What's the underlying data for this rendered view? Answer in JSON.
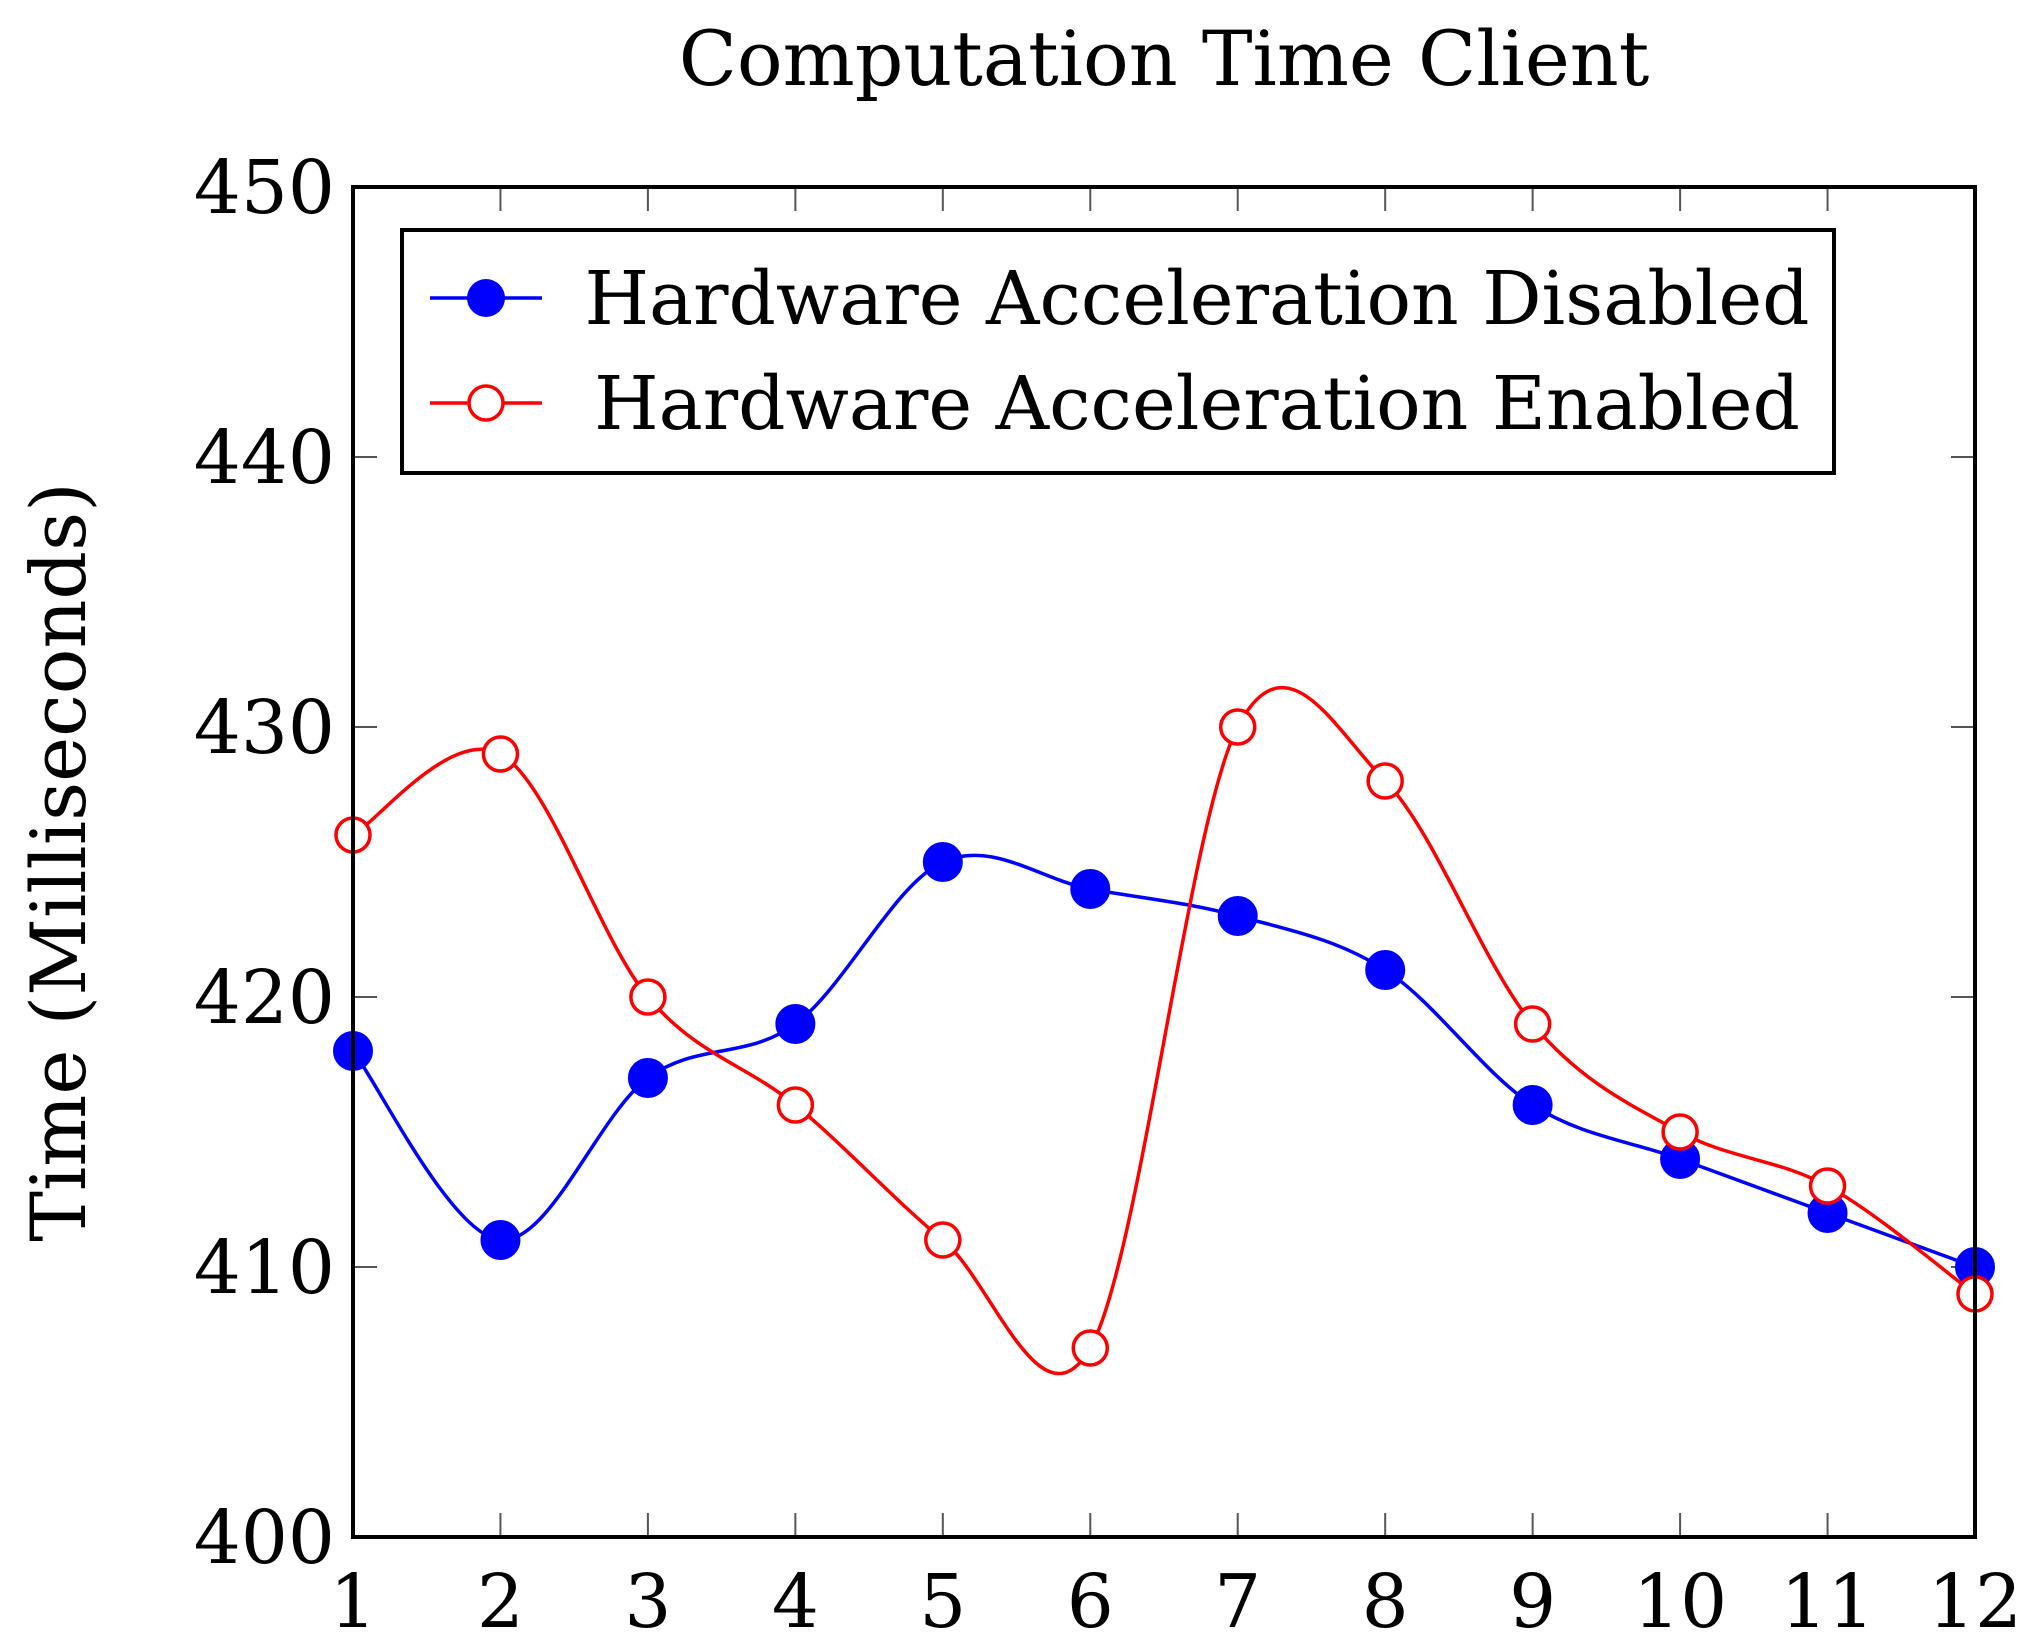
{
  "chart_data": {
    "type": "line",
    "title": "Computation Time Client",
    "xlabel": "",
    "ylabel": "Time (Milliseconds)",
    "x": [
      1,
      2,
      3,
      4,
      5,
      6,
      7,
      8,
      9,
      10,
      11,
      12
    ],
    "xlim": [
      1,
      12
    ],
    "ylim": [
      400,
      450
    ],
    "xticks": [
      "1",
      "2",
      "3",
      "4",
      "5",
      "6",
      "7",
      "8",
      "9",
      "10",
      "11",
      "12"
    ],
    "yticks": [
      "400",
      "410",
      "420",
      "430",
      "440",
      "450"
    ],
    "grid": false,
    "smooth": true,
    "legend_position": "top-center",
    "series": [
      {
        "name": "Hardware Acceleration Disabled",
        "color": "#0000ff",
        "marker": "filled-circle",
        "values": [
          418,
          411,
          417,
          419,
          425,
          424,
          423,
          421,
          416,
          414,
          412,
          410
        ]
      },
      {
        "name": "Hardware Acceleration Enabled",
        "color": "#ff0000",
        "marker": "open-circle",
        "values": [
          426,
          429,
          420,
          416,
          411,
          407,
          430,
          428,
          419,
          415,
          413,
          409
        ]
      }
    ]
  }
}
